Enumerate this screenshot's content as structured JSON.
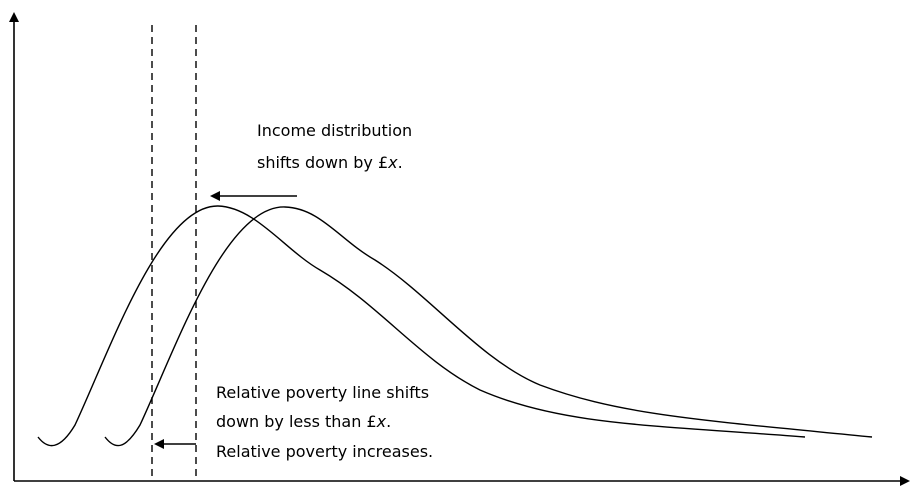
{
  "top_annotation": {
    "line1": "Income distribution",
    "line2": [
      "shifts down by £",
      "x",
      "."
    ]
  },
  "bottom_annotation": {
    "line1": "Relative poverty line shifts",
    "line2": [
      "down by less than £",
      "x",
      "."
    ],
    "line3": "Relative poverty increases."
  }
}
